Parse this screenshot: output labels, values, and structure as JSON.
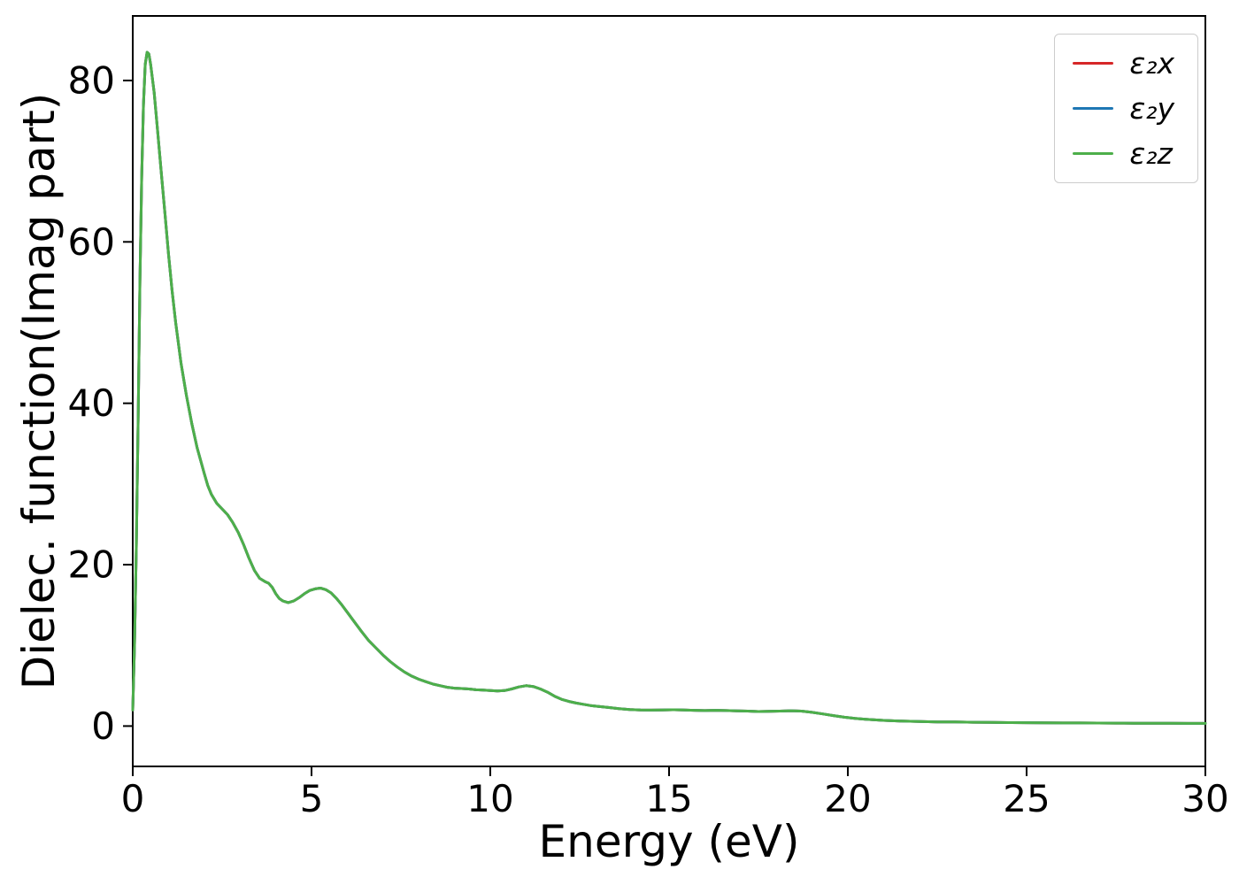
{
  "figure": {
    "background": "#ffffff"
  },
  "chart_data": {
    "type": "line",
    "title": "",
    "xlabel": "Energy (eV)",
    "ylabel": "Dielec. function(Imag part)",
    "xlim": [
      0,
      30
    ],
    "ylim": [
      -5,
      88
    ],
    "x_ticks": [
      0,
      5,
      10,
      15,
      20,
      25,
      30
    ],
    "y_ticks": [
      0,
      20,
      40,
      60,
      80
    ],
    "grid": false,
    "legend_position": "upper right",
    "series_note": "all three series overlap exactly; green is drawn last and covers red and blue",
    "x": [
      0,
      0.05,
      0.1,
      0.15,
      0.2,
      0.25,
      0.3,
      0.35,
      0.4,
      0.45,
      0.5,
      0.6,
      0.7,
      0.8,
      0.9,
      1.0,
      1.1,
      1.2,
      1.35,
      1.5,
      1.65,
      1.8,
      2.0,
      2.1,
      2.2,
      2.35,
      2.5,
      2.65,
      2.8,
      2.95,
      3.1,
      3.25,
      3.4,
      3.55,
      3.7,
      3.8,
      3.9,
      4.0,
      4.1,
      4.2,
      4.35,
      4.5,
      4.65,
      4.8,
      4.95,
      5.1,
      5.25,
      5.4,
      5.55,
      5.7,
      5.85,
      6.0,
      6.2,
      6.4,
      6.6,
      6.8,
      7.0,
      7.2,
      7.4,
      7.6,
      7.8,
      8.0,
      8.2,
      8.4,
      8.6,
      8.8,
      9.0,
      9.2,
      9.4,
      9.6,
      9.8,
      10.0,
      10.2,
      10.4,
      10.6,
      10.8,
      11.0,
      11.2,
      11.4,
      11.6,
      11.8,
      12.0,
      12.2,
      12.4,
      12.6,
      12.8,
      13.0,
      13.3,
      13.6,
      13.9,
      14.2,
      14.5,
      14.8,
      15.1,
      15.4,
      15.7,
      16.0,
      16.3,
      16.6,
      16.9,
      17.2,
      17.5,
      17.8,
      18.1,
      18.4,
      18.7,
      19.0,
      19.3,
      19.6,
      19.9,
      20.2,
      20.5,
      21.0,
      21.5,
      22.0,
      22.5,
      23.0,
      23.5,
      24.0,
      24.5,
      25.0,
      25.5,
      26.0,
      26.5,
      27.0,
      27.5,
      28.0,
      28.5,
      29.0,
      29.5,
      30.0
    ],
    "y_shared": [
      2,
      10,
      22,
      38,
      55,
      68,
      77,
      82,
      83.5,
      83.3,
      82,
      78.5,
      73.5,
      68.5,
      63.5,
      58.5,
      54,
      50,
      45,
      41,
      37.5,
      34.5,
      31.3,
      29.8,
      28.7,
      27.6,
      26.9,
      26.2,
      25.2,
      24,
      22.5,
      20.8,
      19.3,
      18.3,
      17.9,
      17.7,
      17.2,
      16.4,
      15.8,
      15.5,
      15.3,
      15.5,
      15.9,
      16.4,
      16.8,
      17.0,
      17.1,
      16.9,
      16.5,
      15.8,
      15.0,
      14.1,
      12.9,
      11.7,
      10.6,
      9.7,
      8.8,
      8.0,
      7.3,
      6.7,
      6.2,
      5.8,
      5.5,
      5.2,
      5.0,
      4.8,
      4.7,
      4.65,
      4.6,
      4.5,
      4.45,
      4.4,
      4.35,
      4.4,
      4.6,
      4.85,
      5.0,
      4.9,
      4.6,
      4.2,
      3.7,
      3.3,
      3.05,
      2.85,
      2.7,
      2.55,
      2.45,
      2.3,
      2.15,
      2.05,
      2.0,
      1.98,
      2.0,
      2.02,
      2.0,
      1.95,
      1.92,
      1.95,
      1.92,
      1.88,
      1.85,
      1.8,
      1.82,
      1.85,
      1.9,
      1.85,
      1.7,
      1.5,
      1.3,
      1.1,
      0.95,
      0.85,
      0.7,
      0.62,
      0.56,
      0.52,
      0.5,
      0.47,
      0.45,
      0.43,
      0.42,
      0.4,
      0.39,
      0.38,
      0.37,
      0.36,
      0.35,
      0.34,
      0.34,
      0.33,
      0.33
    ],
    "series": [
      {
        "name": "eps2x",
        "label": "ε₂x",
        "color": "#d62728"
      },
      {
        "name": "eps2y",
        "label": "ε₂y",
        "color": "#1f77b4"
      },
      {
        "name": "eps2z",
        "label": "ε₂z",
        "color": "#4daf4a"
      }
    ]
  }
}
